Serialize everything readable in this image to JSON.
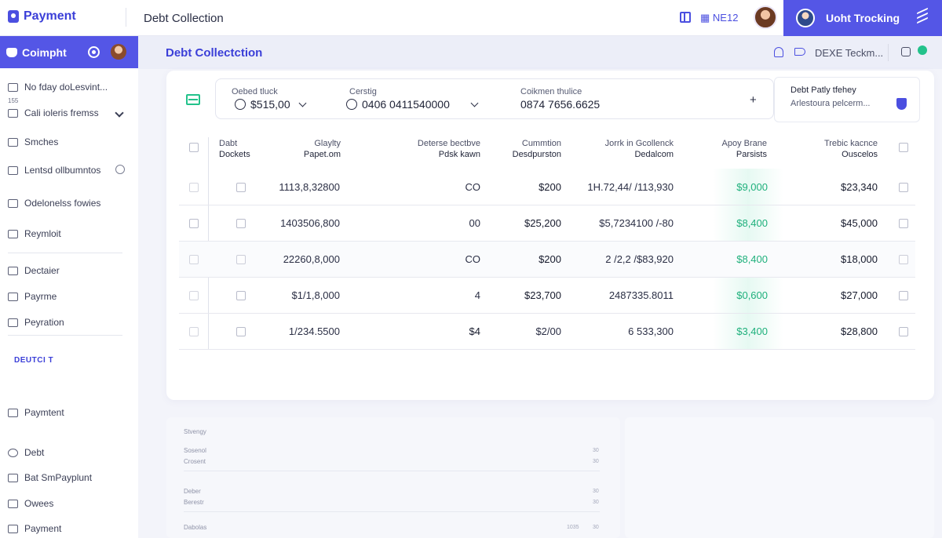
{
  "topbar": {
    "brand": "Payment",
    "title": "Debt Collection",
    "badge": "NE12",
    "tracking_label": "Uoht Trocking"
  },
  "sidebar": {
    "header_label": "Coimpht",
    "mini_number": "155",
    "items": [
      {
        "label": "No fday doLesvint..."
      },
      {
        "label": "Cali ioleris fremss"
      },
      {
        "label": "Smches"
      },
      {
        "label": "Lentsd ollbumntos"
      },
      {
        "label": "Odelonelss fowies"
      },
      {
        "label": "Reymloit"
      },
      {
        "label": "Dectaier"
      },
      {
        "label": "Payrme"
      },
      {
        "label": "Peyration"
      }
    ],
    "section_label": "DEUTCI T",
    "bottom_items": [
      {
        "label": "Paymtent"
      },
      {
        "label": "Debt"
      },
      {
        "label": "Bat SmPayplunt"
      },
      {
        "label": "Owees"
      },
      {
        "label": "Payment"
      }
    ]
  },
  "content_header": {
    "title": "Debt Collectction",
    "action_label": "DEXE Teckm..."
  },
  "filters": [
    {
      "label": "Oebed tluck",
      "value": "$515,00"
    },
    {
      "label": "Cerstig",
      "value": "0406 0411540000"
    },
    {
      "label": "Coikmen thulice",
      "value": "0874 7656.6625"
    }
  ],
  "filter_plus": "+",
  "info_panel": {
    "title": "Debt Patly tfehey",
    "subtitle": "Arlestoura pelcerm..."
  },
  "table": {
    "headers": [
      {
        "line1": "Dabt",
        "line2": "Dockets"
      },
      {
        "line1": "Glaylty",
        "line2": "Papet.om"
      },
      {
        "line1": "Deterse bectbve",
        "line2": "Pdsk kawn"
      },
      {
        "line1": "Cummtion",
        "line2": "Desdpurston"
      },
      {
        "line1": "Jorrk in Gcollenck",
        "line2": "Dedalcom"
      },
      {
        "line1": "Apoy Brane",
        "line2": "Parsists"
      },
      {
        "line1": "Trebic kacnce",
        "line2": "Ouscelos"
      }
    ],
    "rows": [
      {
        "c1": "1113,8,32800",
        "c2": "CO",
        "c3": "$200",
        "c4": "1H.72,44/ /113,930",
        "c5": "$9,000",
        "c6": "$23,340"
      },
      {
        "c1": "1403506,800",
        "c2": "00",
        "c3": "$25,200",
        "c4": "$5,7234100 /-80",
        "c5": "$8,400",
        "c6": "$45,000"
      },
      {
        "c1": "22260,8,000",
        "c2": "CO",
        "c3": "$200",
        "c4": "2 /2,2 /$83,920",
        "c5": "$8,400",
        "c6": "$18,000"
      },
      {
        "c1": "$1/1,8,000",
        "c2": "4",
        "c3": "$23,700",
        "c4": "2487335.8011",
        "c5": "$0,600",
        "c6": "$27,000"
      },
      {
        "c1": "1/234.5500",
        "c2": "$4",
        "c3": "$2/00",
        "c4": "6 533,300",
        "c5": "$3,400",
        "c6": "$28,800"
      }
    ]
  },
  "bottom_panel": {
    "rows": [
      {
        "label": "Stvengy"
      },
      {
        "label": "Sosenol"
      },
      {
        "label": "Crosent"
      },
      {
        "label": "Deber"
      },
      {
        "label": "Berestr"
      },
      {
        "label": "Dabolas"
      }
    ],
    "nums": [
      "30",
      "30",
      "30",
      "30",
      "1035",
      "30"
    ]
  },
  "colors": {
    "accent": "#5456e6",
    "green": "#1fb07c"
  }
}
